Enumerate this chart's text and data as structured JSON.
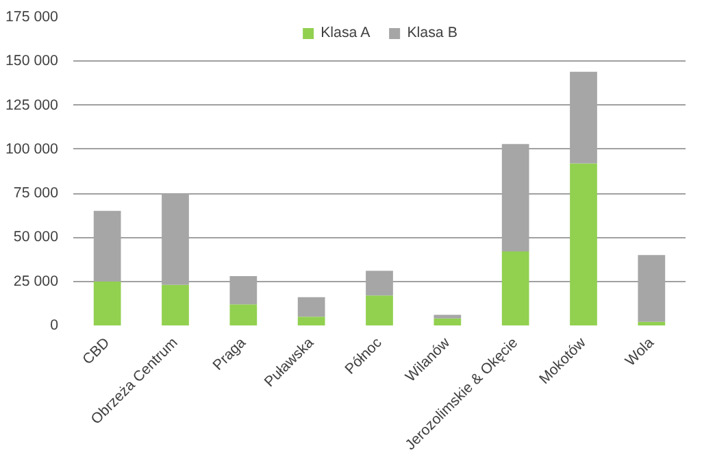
{
  "chart_data": {
    "type": "bar",
    "stacked": true,
    "categories": [
      "CBD",
      "Obrzeża Centrum",
      "Praga",
      "Puławska",
      "Północ",
      "Wilanów",
      "Jerozolimskie & Okęcie",
      "Mokotów",
      "Wola"
    ],
    "series": [
      {
        "name": "Klasa A",
        "color": "#92d050",
        "values": [
          25000,
          23000,
          12000,
          5000,
          17000,
          4000,
          42000,
          92000,
          2000
        ]
      },
      {
        "name": "Klasa B",
        "color": "#a6a6a6",
        "values": [
          40000,
          52000,
          16000,
          11000,
          14000,
          2000,
          61000,
          52000,
          38000
        ]
      }
    ],
    "ylim": [
      0,
      175000
    ],
    "yticks": [
      {
        "value": 0,
        "label": "0"
      },
      {
        "value": 25000,
        "label": "25 000"
      },
      {
        "value": 50000,
        "label": "50 000"
      },
      {
        "value": 75000,
        "label": "75 000"
      },
      {
        "value": 100000,
        "label": "100 000"
      },
      {
        "value": 125000,
        "label": "125 000"
      },
      {
        "value": 150000,
        "label": "150 000"
      },
      {
        "value": 175000,
        "label": "175 000"
      }
    ],
    "grid": "y",
    "legend": "top"
  }
}
